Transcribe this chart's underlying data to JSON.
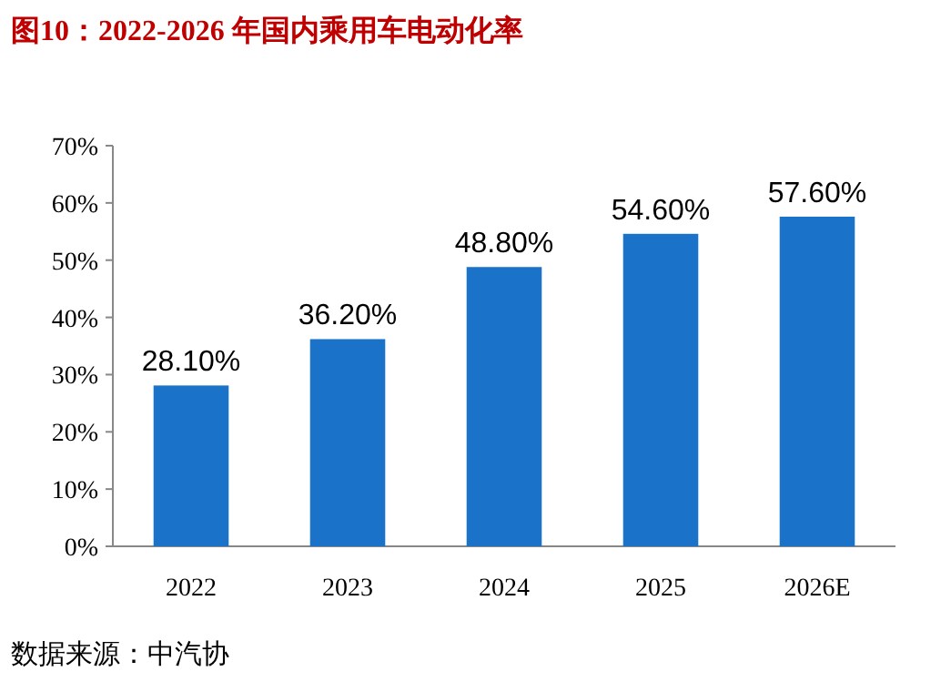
{
  "chart_data": {
    "type": "bar",
    "title": "图10：2022-2026 年国内乘用车电动化率",
    "categories": [
      "2022",
      "2023",
      "2024",
      "2025",
      "2026E"
    ],
    "values": [
      28.1,
      36.2,
      48.8,
      54.6,
      57.6
    ],
    "value_labels": [
      "28.10%",
      "36.20%",
      "48.80%",
      "54.60%",
      "57.60%"
    ],
    "color": "#1a73c8",
    "ylim": [
      0,
      70
    ],
    "yticks": [
      {
        "value": 0,
        "label": "0%"
      },
      {
        "value": 10,
        "label": "10%"
      },
      {
        "value": 20,
        "label": "20%"
      },
      {
        "value": 30,
        "label": "30%"
      },
      {
        "value": 40,
        "label": "40%"
      },
      {
        "value": 50,
        "label": "50%"
      },
      {
        "value": 60,
        "label": "60%"
      },
      {
        "value": 70,
        "label": "70%"
      }
    ],
    "grid": false,
    "annotations": [
      "数据来源：中汽协"
    ]
  }
}
